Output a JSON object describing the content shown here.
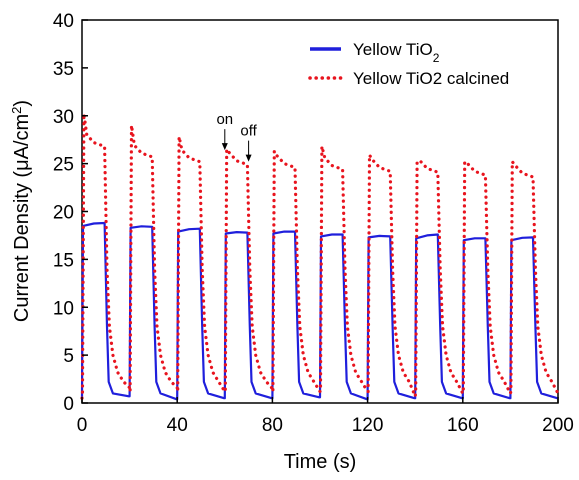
{
  "chart_data": {
    "type": "line",
    "xlabel": "Time (s)",
    "ylabel_main": "Current Density (",
    "ylabel_mu": "μ",
    "ylabel_unit": "A/cm",
    "ylabel_sup": "2",
    "ylabel_close": ")",
    "xlim": [
      0,
      200
    ],
    "ylim": [
      0,
      40
    ],
    "xticks": [
      0,
      40,
      80,
      120,
      160,
      200
    ],
    "yticks": [
      0,
      5,
      10,
      15,
      20,
      25,
      30,
      35,
      40
    ],
    "legend_position": "top-right",
    "grid": false,
    "on_periods": [
      [
        0,
        10
      ],
      [
        20,
        30
      ],
      [
        40,
        50
      ],
      [
        60,
        70
      ],
      [
        80,
        90
      ],
      [
        100,
        110
      ],
      [
        120,
        130
      ],
      [
        140,
        150
      ],
      [
        160,
        170
      ],
      [
        180,
        190
      ]
    ],
    "series": [
      {
        "name_main": "Yellow TiO",
        "name_sub": "2",
        "color": "#1f1fdc",
        "style": "solid",
        "on_start": [
          18.5,
          18.3,
          17.9,
          17.7,
          17.7,
          17.4,
          17.3,
          17.2,
          17.0,
          17.0
        ],
        "on_end": [
          18.8,
          18.4,
          18.2,
          17.8,
          17.9,
          17.6,
          17.4,
          17.6,
          17.2,
          17.3
        ],
        "dark": [
          0.6,
          0.7,
          0.4,
          0.5,
          0.5,
          0.6,
          0.4,
          0.5,
          0.5,
          0.5
        ]
      },
      {
        "name": "Yellow TiO2 calcined",
        "color": "#e8141e",
        "style": "dotted",
        "on_peak": [
          30.2,
          29.0,
          27.8,
          26.5,
          26.3,
          26.8,
          25.9,
          25.2,
          25.2,
          25.2
        ],
        "on_end": [
          26.8,
          25.7,
          25.2,
          24.9,
          24.6,
          24.4,
          24.2,
          24.1,
          23.8,
          23.6
        ],
        "dark": [
          1.6,
          1.6,
          1.2,
          1.5,
          1.2,
          1.2,
          0.7,
          1.0,
          1.0,
          1.0
        ]
      }
    ],
    "annotations": [
      {
        "text": "on",
        "x": 60,
        "y": 26.2
      },
      {
        "text": "off",
        "x": 70,
        "y": 25.0
      }
    ]
  }
}
